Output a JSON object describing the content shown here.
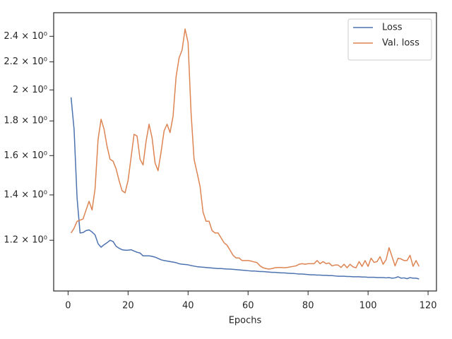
{
  "chart_data": {
    "type": "line",
    "xlabel": "Epochs",
    "x": [
      1,
      2,
      3,
      4,
      5,
      6,
      7,
      8,
      9,
      10,
      11,
      12,
      13,
      14,
      15,
      16,
      17,
      18,
      19,
      20,
      21,
      22,
      23,
      24,
      25,
      26,
      27,
      28,
      29,
      30,
      31,
      32,
      33,
      34,
      35,
      36,
      37,
      38,
      39,
      40,
      41,
      42,
      43,
      44,
      45,
      46,
      47,
      48,
      49,
      50,
      51,
      52,
      53,
      54,
      55,
      56,
      57,
      58,
      59,
      60,
      61,
      62,
      63,
      64,
      65,
      66,
      67,
      68,
      69,
      70,
      71,
      72,
      73,
      74,
      75,
      76,
      77,
      78,
      79,
      80,
      81,
      82,
      83,
      84,
      85,
      86,
      87,
      88,
      89,
      90,
      91,
      92,
      93,
      94,
      95,
      96,
      97,
      98,
      99,
      100,
      101,
      102,
      103,
      104,
      105,
      106,
      107,
      108,
      109,
      110,
      111,
      112,
      113,
      114,
      115,
      116,
      117
    ],
    "series": [
      {
        "name": "Loss",
        "color": "#4c72b0",
        "values": [
          1.95,
          1.75,
          1.385,
          1.23,
          1.232,
          1.24,
          1.243,
          1.234,
          1.222,
          1.186,
          1.172,
          1.182,
          1.19,
          1.2,
          1.195,
          1.176,
          1.168,
          1.162,
          1.16,
          1.16,
          1.162,
          1.157,
          1.152,
          1.149,
          1.138,
          1.138,
          1.138,
          1.136,
          1.133,
          1.128,
          1.123,
          1.12,
          1.118,
          1.116,
          1.114,
          1.112,
          1.108,
          1.106,
          1.105,
          1.104,
          1.101,
          1.099,
          1.097,
          1.096,
          1.095,
          1.094,
          1.093,
          1.092,
          1.091,
          1.09,
          1.09,
          1.089,
          1.088,
          1.088,
          1.087,
          1.086,
          1.085,
          1.084,
          1.083,
          1.082,
          1.081,
          1.081,
          1.08,
          1.079,
          1.079,
          1.078,
          1.077,
          1.076,
          1.076,
          1.075,
          1.074,
          1.074,
          1.073,
          1.072,
          1.072,
          1.071,
          1.07,
          1.07,
          1.069,
          1.068,
          1.067,
          1.067,
          1.066,
          1.066,
          1.065,
          1.065,
          1.064,
          1.064,
          1.063,
          1.062,
          1.062,
          1.062,
          1.061,
          1.061,
          1.06,
          1.06,
          1.06,
          1.059,
          1.059,
          1.058,
          1.058,
          1.058,
          1.057,
          1.057,
          1.057,
          1.056,
          1.057,
          1.055,
          1.056,
          1.06,
          1.055,
          1.056,
          1.053,
          1.057,
          1.055,
          1.055,
          1.052
        ]
      },
      {
        "name": "Val. loss",
        "color": "#dd8452",
        "values": [
          1.23,
          1.25,
          1.28,
          1.285,
          1.29,
          1.33,
          1.37,
          1.33,
          1.43,
          1.69,
          1.81,
          1.75,
          1.65,
          1.58,
          1.57,
          1.53,
          1.47,
          1.42,
          1.41,
          1.47,
          1.59,
          1.72,
          1.71,
          1.58,
          1.55,
          1.68,
          1.78,
          1.7,
          1.56,
          1.52,
          1.62,
          1.74,
          1.78,
          1.73,
          1.83,
          2.09,
          2.23,
          2.29,
          2.46,
          2.35,
          1.85,
          1.58,
          1.51,
          1.44,
          1.32,
          1.28,
          1.28,
          1.24,
          1.23,
          1.23,
          1.21,
          1.19,
          1.18,
          1.16,
          1.14,
          1.13,
          1.13,
          1.12,
          1.12,
          1.12,
          1.118,
          1.115,
          1.112,
          1.1,
          1.093,
          1.09,
          1.088,
          1.09,
          1.093,
          1.094,
          1.094,
          1.093,
          1.094,
          1.096,
          1.098,
          1.1,
          1.106,
          1.108,
          1.106,
          1.108,
          1.108,
          1.108,
          1.12,
          1.108,
          1.116,
          1.108,
          1.111,
          1.1,
          1.103,
          1.103,
          1.094,
          1.106,
          1.093,
          1.106,
          1.096,
          1.093,
          1.116,
          1.098,
          1.12,
          1.098,
          1.129,
          1.113,
          1.116,
          1.135,
          1.106,
          1.123,
          1.17,
          1.135,
          1.1,
          1.129,
          1.126,
          1.12,
          1.12,
          1.14,
          1.098,
          1.12,
          1.098
        ]
      }
    ],
    "xlim": [
      -4.8,
      122.8
    ],
    "xticks": [
      0,
      20,
      40,
      60,
      80,
      100,
      120
    ],
    "ylim": [
      1.01,
      2.6
    ],
    "yscale": "log",
    "yticks": [
      {
        "value": 1.2,
        "label": "1.2 × 10⁰"
      },
      {
        "value": 1.4,
        "label": "1.4 × 10⁰"
      },
      {
        "value": 1.6,
        "label": "1.6 × 10⁰"
      },
      {
        "value": 1.8,
        "label": "1.8 × 10⁰"
      },
      {
        "value": 2,
        "label": "2 × 10⁰"
      },
      {
        "value": 2.2,
        "label": "2.2 × 10⁰"
      },
      {
        "value": 2.4,
        "label": "2.4 × 10⁰"
      }
    ],
    "grid": false,
    "legend": "upper right"
  }
}
